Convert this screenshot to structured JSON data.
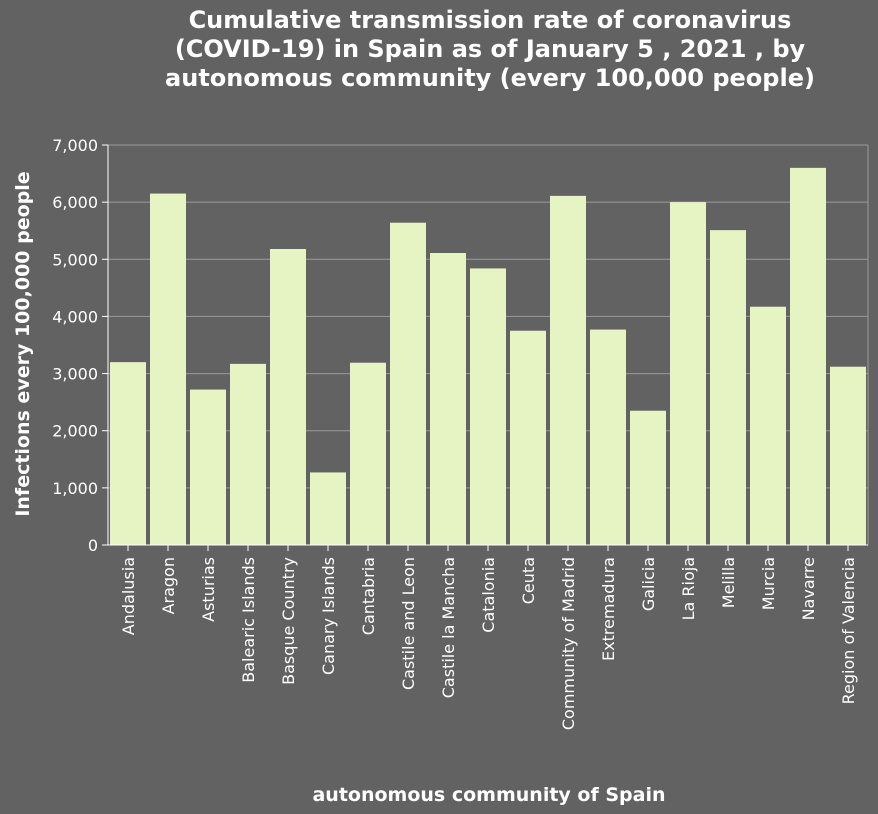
{
  "chart_data": {
    "type": "bar",
    "title": "Cumulative transmission rate of coronavirus (COVID-19) in Spain as of January 5 , 2021 , by autonomous community (every 100,000 people)",
    "xlabel": "autonomous community of Spain",
    "ylabel": "Infections every 100,000 people",
    "categories": [
      "Andalusia",
      "Aragon",
      "Asturias",
      "Balearic Islands",
      "Basque Country",
      "Canary Islands",
      "Cantabria",
      "Castile and Leon",
      "Castile la Mancha",
      "Catalonia",
      "Ceuta",
      "Community of Madrid",
      "Extremadura",
      "Galicia",
      "La Rioja",
      "Melilla",
      "Murcia",
      "Navarre",
      "Region of Valencia"
    ],
    "values": [
      3200,
      6150,
      2720,
      3170,
      5180,
      1270,
      3190,
      5640,
      5110,
      4840,
      3750,
      6110,
      3770,
      2350,
      6000,
      5510,
      4170,
      6600,
      3120
    ],
    "ylim": [
      0,
      7000
    ],
    "yticks": [
      "0",
      "1,000",
      "2,000",
      "3,000",
      "4,000",
      "5,000",
      "6,000",
      "7,000"
    ],
    "grid": true,
    "bar_color": "#e6f4c3",
    "background_color": "#626262",
    "grid_color": "#9a9a9a"
  }
}
